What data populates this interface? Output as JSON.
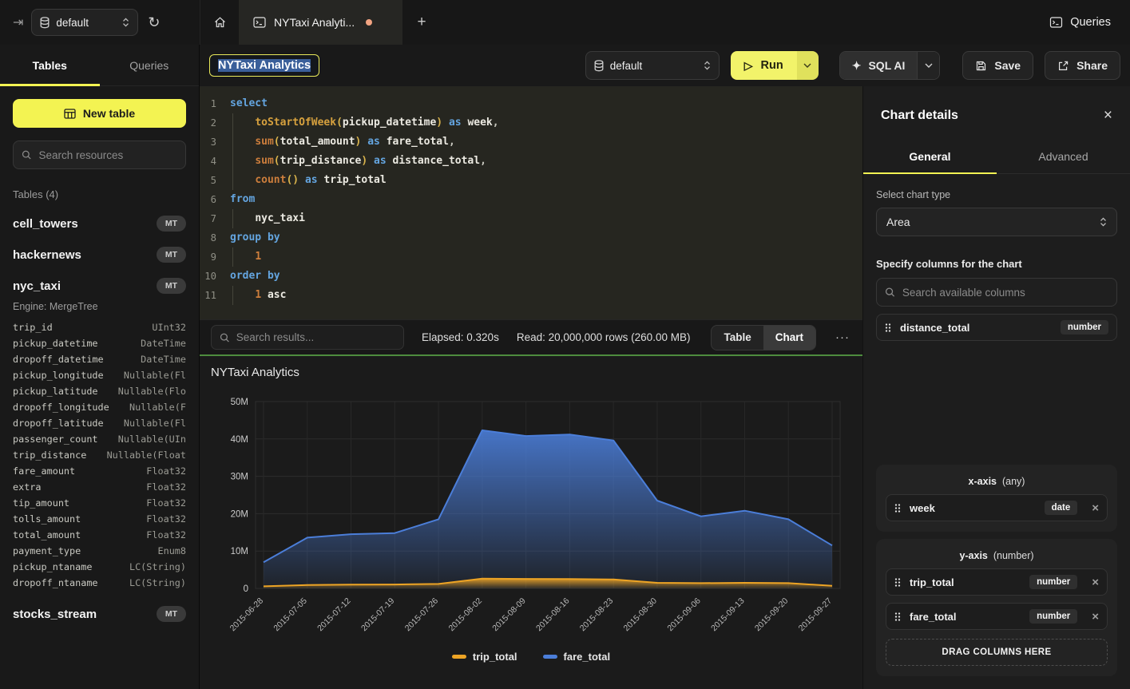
{
  "colors": {
    "accent_yellow": "#f3f352",
    "run_yellow": "#f2f36a",
    "success_green": "#4e8c3e",
    "unsaved_dot": "#f2a482",
    "selection_blue": "#3a5f9a"
  },
  "topbar": {
    "database": "default",
    "tab_title": "NYTaxi Analyti...",
    "add_tab": "+",
    "queries_label": "Queries"
  },
  "sidebar": {
    "tabs": [
      "Tables",
      "Queries"
    ],
    "new_table_label": "New table",
    "search_placeholder": "Search resources",
    "tables_header": "Tables (4)",
    "tables": [
      {
        "name": "cell_towers",
        "badge": "MT"
      },
      {
        "name": "hackernews",
        "badge": "MT"
      },
      {
        "name": "nyc_taxi",
        "badge": "MT",
        "engine": "Engine: MergeTree",
        "columns": [
          [
            "trip_id",
            "UInt32"
          ],
          [
            "pickup_datetime",
            "DateTime"
          ],
          [
            "dropoff_datetime",
            "DateTime"
          ],
          [
            "pickup_longitude",
            "Nullable(Fl"
          ],
          [
            "pickup_latitude",
            "Nullable(Flo"
          ],
          [
            "dropoff_longitude",
            "Nullable(F"
          ],
          [
            "dropoff_latitude",
            "Nullable(Fl"
          ],
          [
            "passenger_count",
            "Nullable(UIn"
          ],
          [
            "trip_distance",
            "Nullable(Float"
          ],
          [
            "fare_amount",
            "Float32"
          ],
          [
            "extra",
            "Float32"
          ],
          [
            "tip_amount",
            "Float32"
          ],
          [
            "tolls_amount",
            "Float32"
          ],
          [
            "total_amount",
            "Float32"
          ],
          [
            "payment_type",
            "Enum8"
          ],
          [
            "pickup_ntaname",
            "LC(String)"
          ],
          [
            "dropoff_ntaname",
            "LC(String)"
          ]
        ]
      },
      {
        "name": "stocks_stream",
        "badge": "MT"
      }
    ]
  },
  "toolbar": {
    "title_value": "NYTaxi Analytics",
    "database": "default",
    "run_label": "Run",
    "sql_ai_label": "SQL AI",
    "save_label": "Save",
    "share_label": "Share"
  },
  "editor": {
    "lines": [
      {
        "num": "1",
        "tokens": [
          [
            "kw",
            "select"
          ]
        ]
      },
      {
        "num": "2",
        "tokens": [
          [
            "pl",
            "    "
          ],
          [
            "fn",
            "toStartOfWeek"
          ],
          [
            "pr",
            "("
          ],
          [
            "id",
            "pickup_datetime"
          ],
          [
            "pr",
            ")"
          ],
          [
            "pl",
            " "
          ],
          [
            "kw",
            "as"
          ],
          [
            "pl",
            " "
          ],
          [
            "id",
            "week"
          ],
          [
            "pl",
            ","
          ]
        ]
      },
      {
        "num": "3",
        "tokens": [
          [
            "pl",
            "    "
          ],
          [
            "fo",
            "sum"
          ],
          [
            "pr",
            "("
          ],
          [
            "id",
            "total_amount"
          ],
          [
            "pr",
            ")"
          ],
          [
            "pl",
            " "
          ],
          [
            "kw",
            "as"
          ],
          [
            "pl",
            " "
          ],
          [
            "id",
            "fare_total"
          ],
          [
            "pl",
            ","
          ]
        ]
      },
      {
        "num": "4",
        "tokens": [
          [
            "pl",
            "    "
          ],
          [
            "fo",
            "sum"
          ],
          [
            "pr",
            "("
          ],
          [
            "id",
            "trip_distance"
          ],
          [
            "pr",
            ")"
          ],
          [
            "pl",
            " "
          ],
          [
            "kw",
            "as"
          ],
          [
            "pl",
            " "
          ],
          [
            "id",
            "distance_total"
          ],
          [
            "pl",
            ","
          ]
        ]
      },
      {
        "num": "5",
        "tokens": [
          [
            "pl",
            "    "
          ],
          [
            "fo",
            "count"
          ],
          [
            "pr",
            "()"
          ],
          [
            "pl",
            " "
          ],
          [
            "kw",
            "as"
          ],
          [
            "pl",
            " "
          ],
          [
            "id",
            "trip_total"
          ]
        ]
      },
      {
        "num": "6",
        "tokens": [
          [
            "kw",
            "from"
          ]
        ]
      },
      {
        "num": "7",
        "tokens": [
          [
            "pl",
            "    "
          ],
          [
            "id",
            "nyc_taxi"
          ]
        ]
      },
      {
        "num": "8",
        "tokens": [
          [
            "kw",
            "group by"
          ]
        ]
      },
      {
        "num": "9",
        "tokens": [
          [
            "pl",
            "    "
          ],
          [
            "nm",
            "1"
          ]
        ]
      },
      {
        "num": "10",
        "tokens": [
          [
            "kw",
            "order by"
          ]
        ]
      },
      {
        "num": "11",
        "tokens": [
          [
            "pl",
            "    "
          ],
          [
            "nm",
            "1"
          ],
          [
            "pl",
            " "
          ],
          [
            "id",
            "asc"
          ]
        ]
      }
    ]
  },
  "results_bar": {
    "search_placeholder": "Search results...",
    "elapsed": "Elapsed: 0.320s",
    "read": "Read: 20,000,000 rows (260.00 MB)",
    "views": [
      "Table",
      "Chart"
    ],
    "active_view": "Chart",
    "more": "···"
  },
  "chart_data": {
    "type": "area",
    "title": "NYTaxi Analytics",
    "x": [
      "2015-06-28",
      "2015-07-05",
      "2015-07-12",
      "2015-07-19",
      "2015-07-26",
      "2015-08-02",
      "2015-08-09",
      "2015-08-16",
      "2015-08-23",
      "2015-08-30",
      "2015-09-06",
      "2015-09-13",
      "2015-09-20",
      "2015-09-27"
    ],
    "series": [
      {
        "name": "trip_total",
        "color": "#eda425",
        "values": [
          550000,
          900000,
          1000000,
          1050000,
          1200000,
          2600000,
          2550000,
          2500000,
          2400000,
          1500000,
          1400000,
          1500000,
          1400000,
          700000
        ]
      },
      {
        "name": "fare_total",
        "color": "#4b7ed9",
        "values": [
          7000000,
          13600000,
          14500000,
          14800000,
          18500000,
          42300000,
          40800000,
          41200000,
          39600000,
          23500000,
          19300000,
          20800000,
          18500000,
          11500000
        ]
      }
    ],
    "ylim": [
      0,
      50000000
    ],
    "ytick_labels": [
      "0",
      "10M",
      "20M",
      "30M",
      "40M",
      "50M"
    ],
    "legend": [
      "trip_total",
      "fare_total"
    ],
    "legend_position": "bottom",
    "grid": true,
    "x_label_rotation": -45
  },
  "chart_panel": {
    "title": "Chart details",
    "close": "×",
    "tabs": [
      {
        "label": "General",
        "active": true
      },
      {
        "label": "Advanced",
        "active": false
      }
    ],
    "chart_type_label": "Select chart type",
    "chart_type_value": "Area",
    "columns_label": "Specify columns for the chart",
    "columns_search_placeholder": "Search available columns",
    "available_columns": [
      {
        "name": "distance_total",
        "type": "number"
      }
    ],
    "x_axis": {
      "title": "x-axis",
      "hint": "(any)",
      "items": [
        {
          "name": "week",
          "type": "date"
        }
      ]
    },
    "y_axis": {
      "title": "y-axis",
      "hint": "(number)",
      "items": [
        {
          "name": "trip_total",
          "type": "number"
        },
        {
          "name": "fare_total",
          "type": "number"
        }
      ]
    },
    "drop_zone": "DRAG COLUMNS HERE"
  }
}
